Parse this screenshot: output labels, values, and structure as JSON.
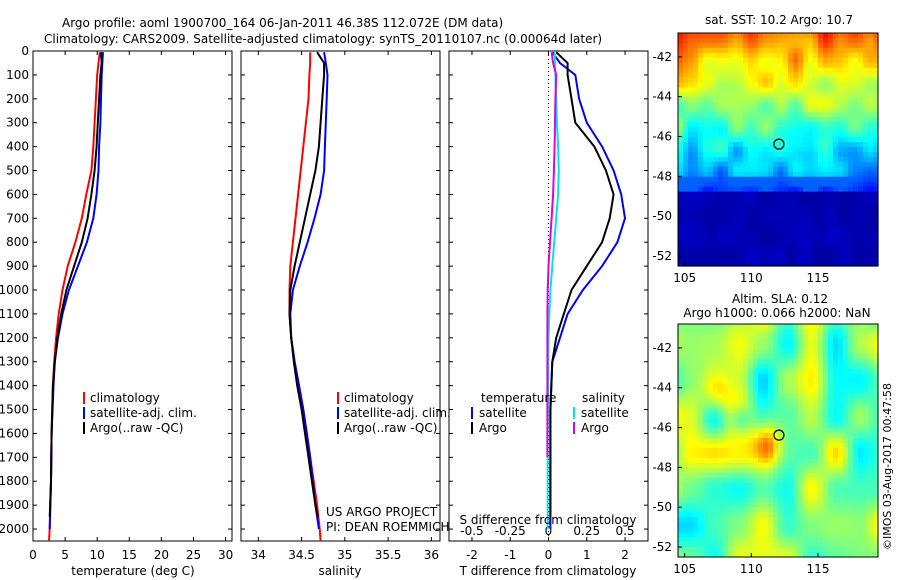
{
  "header": {
    "line1": "Argo profile: aoml 1900700_164 06-Jan-2011 46.38S 112.072E (DM data)",
    "line2": "Climatology: CARS2009. Satellite-adjusted climatology: synTS_20110107.nc (0.00064d later)"
  },
  "colors": {
    "climatology": "#ff0000",
    "satellite": "#0000ff",
    "argo": "#000000",
    "s_satellite": "#00e5e5",
    "s_argo": "#e000e0"
  },
  "chart_data": [
    {
      "id": "temperature",
      "type": "line",
      "xlabel": "temperature (deg C)",
      "ylabel": "",
      "xlim": [
        0,
        31
      ],
      "xticks": [
        0,
        5,
        10,
        15,
        20,
        25,
        30
      ],
      "ylim": [
        2050,
        0
      ],
      "yticks": [
        0,
        100,
        200,
        300,
        400,
        500,
        600,
        700,
        800,
        900,
        1000,
        1100,
        1200,
        1300,
        1400,
        1500,
        1600,
        1700,
        1800,
        1900,
        2000
      ],
      "legend": [
        "climatology",
        "satellite-adj. clim.",
        "Argo(..raw -QC)"
      ],
      "series": [
        {
          "name": "climatology",
          "color": "#ff0000",
          "points": [
            [
              10.4,
              5
            ],
            [
              10.2,
              50
            ],
            [
              10.0,
              100
            ],
            [
              9.8,
              200
            ],
            [
              9.6,
              300
            ],
            [
              9.4,
              400
            ],
            [
              9.1,
              500
            ],
            [
              8.3,
              600
            ],
            [
              7.6,
              700
            ],
            [
              6.6,
              800
            ],
            [
              5.4,
              900
            ],
            [
              4.6,
              1000
            ],
            [
              4.0,
              1100
            ],
            [
              3.6,
              1200
            ],
            [
              3.3,
              1300
            ],
            [
              3.1,
              1400
            ],
            [
              2.9,
              1600
            ],
            [
              2.8,
              1800
            ],
            [
              2.6,
              2000
            ],
            [
              2.5,
              2050
            ]
          ]
        },
        {
          "name": "satellite-adj. clim.",
          "color": "#0000ff",
          "points": [
            [
              10.9,
              5
            ],
            [
              10.8,
              50
            ],
            [
              10.7,
              100
            ],
            [
              10.6,
              200
            ],
            [
              10.5,
              300
            ],
            [
              10.3,
              400
            ],
            [
              10.2,
              500
            ],
            [
              9.9,
              600
            ],
            [
              9.4,
              700
            ],
            [
              8.4,
              800
            ],
            [
              7.0,
              900
            ],
            [
              5.6,
              1000
            ],
            [
              4.6,
              1100
            ],
            [
              3.9,
              1200
            ],
            [
              3.4,
              1300
            ],
            [
              3.2,
              1400
            ],
            [
              2.9,
              1600
            ],
            [
              2.8,
              1800
            ],
            [
              2.6,
              2000
            ]
          ]
        },
        {
          "name": "Argo(..raw -QC)",
          "color": "#000000",
          "points": [
            [
              10.6,
              5
            ],
            [
              10.7,
              50
            ],
            [
              10.5,
              100
            ],
            [
              10.3,
              200
            ],
            [
              10.1,
              300
            ],
            [
              9.9,
              400
            ],
            [
              9.6,
              500
            ],
            [
              9.1,
              600
            ],
            [
              8.5,
              700
            ],
            [
              7.6,
              800
            ],
            [
              6.4,
              900
            ],
            [
              5.2,
              1000
            ],
            [
              4.4,
              1100
            ],
            [
              3.8,
              1200
            ],
            [
              3.4,
              1300
            ],
            [
              3.1,
              1400
            ],
            [
              2.9,
              1600
            ],
            [
              2.8,
              1800
            ],
            [
              2.6,
              1950
            ]
          ]
        }
      ]
    },
    {
      "id": "salinity",
      "type": "line",
      "xlabel": "salinity",
      "ylabel": "",
      "xlim": [
        33.8,
        36.1
      ],
      "xticks": [
        34,
        34.5,
        35,
        35.5,
        36
      ],
      "ylim": [
        2050,
        0
      ],
      "legend": [
        "climatology",
        "satellite-adj. clim.",
        "Argo(..raw -QC)"
      ],
      "series": [
        {
          "name": "climatology",
          "color": "#ff0000",
          "points": [
            [
              34.6,
              5
            ],
            [
              34.6,
              50
            ],
            [
              34.59,
              100
            ],
            [
              34.58,
              200
            ],
            [
              34.55,
              300
            ],
            [
              34.52,
              400
            ],
            [
              34.49,
              500
            ],
            [
              34.46,
              600
            ],
            [
              34.43,
              700
            ],
            [
              34.4,
              800
            ],
            [
              34.37,
              900
            ],
            [
              34.36,
              1000
            ],
            [
              34.36,
              1100
            ],
            [
              34.38,
              1200
            ],
            [
              34.42,
              1300
            ],
            [
              34.47,
              1400
            ],
            [
              34.52,
              1500
            ],
            [
              34.56,
              1600
            ],
            [
              34.6,
              1700
            ],
            [
              34.64,
              1800
            ],
            [
              34.68,
              1900
            ],
            [
              34.71,
              2000
            ],
            [
              34.72,
              2050
            ]
          ]
        },
        {
          "name": "satellite-adj. clim.",
          "color": "#0000ff",
          "points": [
            [
              34.76,
              5
            ],
            [
              34.78,
              50
            ],
            [
              34.8,
              100
            ],
            [
              34.79,
              200
            ],
            [
              34.78,
              300
            ],
            [
              34.77,
              400
            ],
            [
              34.76,
              500
            ],
            [
              34.72,
              600
            ],
            [
              34.65,
              700
            ],
            [
              34.57,
              800
            ],
            [
              34.48,
              900
            ],
            [
              34.4,
              1000
            ],
            [
              34.37,
              1100
            ],
            [
              34.38,
              1200
            ],
            [
              34.42,
              1300
            ],
            [
              34.47,
              1400
            ],
            [
              34.52,
              1500
            ],
            [
              34.56,
              1600
            ],
            [
              34.6,
              1700
            ],
            [
              34.63,
              1800
            ],
            [
              34.66,
              1900
            ],
            [
              34.7,
              2000
            ]
          ]
        },
        {
          "name": "Argo(..raw -QC)",
          "color": "#000000",
          "points": [
            [
              34.68,
              5
            ],
            [
              34.76,
              50
            ],
            [
              34.76,
              100
            ],
            [
              34.74,
              200
            ],
            [
              34.72,
              300
            ],
            [
              34.7,
              400
            ],
            [
              34.66,
              500
            ],
            [
              34.6,
              600
            ],
            [
              34.54,
              700
            ],
            [
              34.48,
              800
            ],
            [
              34.42,
              900
            ],
            [
              34.37,
              1000
            ],
            [
              34.36,
              1100
            ],
            [
              34.38,
              1200
            ],
            [
              34.41,
              1300
            ],
            [
              34.45,
              1400
            ],
            [
              34.5,
              1500
            ],
            [
              34.54,
              1600
            ],
            [
              34.58,
              1700
            ],
            [
              34.62,
              1800
            ],
            [
              34.66,
              1900
            ],
            [
              34.69,
              1950
            ]
          ]
        }
      ]
    },
    {
      "id": "difference",
      "type": "line",
      "xlabel": "T difference from climatology",
      "xlabel_top": "S difference from climatology",
      "xlim": [
        -2.6,
        2.6
      ],
      "xticks": [
        -2,
        -1,
        0,
        1,
        2
      ],
      "xticks_top_labels": [
        "-0.5",
        "-0.25",
        "0",
        "0.25",
        "0.5"
      ],
      "ylim": [
        2050,
        0
      ],
      "legend": {
        "temperature": [
          "satellite",
          "Argo"
        ],
        "salinity": [
          "satellite",
          "Argo"
        ],
        "temperature_title": "temperature",
        "salinity_title": "salinity"
      },
      "series": [
        {
          "name": "T satellite",
          "color": "#0000ff",
          "points": [
            [
              0.1,
              5
            ],
            [
              0.3,
              50
            ],
            [
              0.7,
              100
            ],
            [
              0.8,
              200
            ],
            [
              1.0,
              300
            ],
            [
              1.4,
              400
            ],
            [
              1.7,
              500
            ],
            [
              1.9,
              600
            ],
            [
              2.0,
              700
            ],
            [
              1.8,
              800
            ],
            [
              1.4,
              900
            ],
            [
              0.9,
              1000
            ],
            [
              0.5,
              1100
            ],
            [
              0.3,
              1200
            ],
            [
              0.1,
              1300
            ],
            [
              0.05,
              1500
            ],
            [
              0.05,
              1800
            ],
            [
              0.05,
              2000
            ]
          ]
        },
        {
          "name": "T Argo",
          "color": "#000000",
          "points": [
            [
              0.2,
              5
            ],
            [
              0.5,
              50
            ],
            [
              0.5,
              100
            ],
            [
              0.6,
              200
            ],
            [
              0.7,
              300
            ],
            [
              1.2,
              400
            ],
            [
              1.5,
              500
            ],
            [
              1.7,
              600
            ],
            [
              1.6,
              700
            ],
            [
              1.4,
              800
            ],
            [
              1.0,
              900
            ],
            [
              0.6,
              1000
            ],
            [
              0.4,
              1100
            ],
            [
              0.2,
              1200
            ],
            [
              0.1,
              1300
            ],
            [
              0.05,
              1500
            ],
            [
              0.05,
              1800
            ],
            [
              0.05,
              1950
            ]
          ]
        },
        {
          "name": "S satellite",
          "color": "#00e5e5",
          "points": [
            [
              0.16,
              5
            ],
            [
              0.18,
              100
            ],
            [
              0.2,
              200
            ],
            [
              0.22,
              300
            ],
            [
              0.25,
              400
            ],
            [
              0.27,
              500
            ],
            [
              0.25,
              600
            ],
            [
              0.2,
              700
            ],
            [
              0.15,
              800
            ],
            [
              0.1,
              900
            ],
            [
              0.05,
              1000
            ],
            [
              0.02,
              1100
            ],
            [
              0.0,
              1200
            ],
            [
              -0.01,
              1400
            ],
            [
              -0.02,
              1600
            ],
            [
              -0.02,
              1800
            ],
            [
              -0.02,
              2000
            ]
          ]
        },
        {
          "name": "S Argo",
          "color": "#e000e0",
          "points": [
            [
              0.08,
              5
            ],
            [
              0.12,
              50
            ],
            [
              0.2,
              100
            ],
            [
              0.18,
              200
            ],
            [
              0.17,
              300
            ],
            [
              0.16,
              400
            ],
            [
              0.14,
              500
            ],
            [
              0.12,
              600
            ],
            [
              0.08,
              700
            ],
            [
              0.04,
              800
            ],
            [
              0.0,
              900
            ],
            [
              -0.02,
              1000
            ],
            [
              -0.03,
              1100
            ],
            [
              -0.03,
              1200
            ],
            [
              -0.03,
              1400
            ],
            [
              -0.03,
              1600
            ],
            [
              -0.03,
              1700
            ]
          ]
        }
      ]
    },
    {
      "id": "sst_map",
      "type": "heatmap",
      "title": "sat. SST: 10.2  Argo: 10.7",
      "xlim": [
        104.5,
        119.5
      ],
      "ylim": [
        -52.5,
        -40.8
      ],
      "xticks": [
        105,
        110,
        115
      ],
      "yticks": [
        -42,
        -44,
        -46,
        -48,
        -50,
        -52
      ],
      "marker": {
        "lon": 112.07,
        "lat": -46.38
      }
    },
    {
      "id": "sla_map",
      "type": "heatmap",
      "title_line1": "Altim. SLA: 0.12",
      "title_line2": "Argo h1000: 0.066 h2000: NaN",
      "xlim": [
        104.5,
        119.5
      ],
      "ylim": [
        -52.5,
        -40.8
      ],
      "xticks": [
        105,
        110,
        115
      ],
      "yticks": [
        -42,
        -44,
        -46,
        -48,
        -50,
        -52
      ],
      "marker": {
        "lon": 112.07,
        "lat": -46.38
      }
    }
  ],
  "annotations": {
    "project_line1": "US ARGO PROJECT",
    "project_line2": "PI: DEAN ROEMMICH",
    "credit": "©IMOS 03-Aug-2017 00:47:58"
  }
}
